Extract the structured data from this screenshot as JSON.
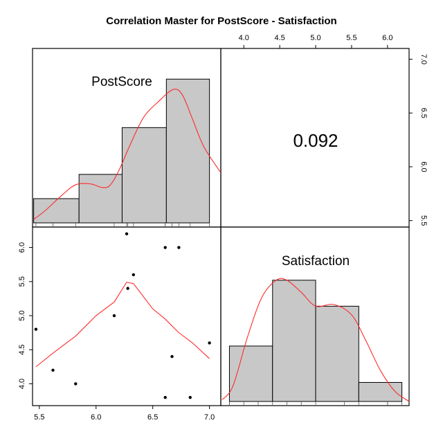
{
  "chart_data": {
    "type": "pairs",
    "title": "Correlation Master for PostScore - Satisfaction",
    "variables": [
      "PostScore",
      "Satisfaction"
    ],
    "correlation": "0.092",
    "colors": {
      "bar": "#c8c8c8",
      "curve": "#ff2a2a",
      "points": "#000000"
    },
    "postscore_axis": {
      "range": [
        5.44,
        7.1
      ],
      "ticks": [
        "5.5",
        "6.0",
        "6.5",
        "7.0"
      ]
    },
    "satisfaction_axis": {
      "range": [
        3.68,
        6.3
      ],
      "ticks": [
        "4.0",
        "4.5",
        "5.0",
        "5.5",
        "6.0"
      ]
    },
    "top_right_axis": {
      "ticks": [
        "4.0",
        "4.5",
        "5.0",
        "5.5",
        "6.0"
      ]
    },
    "right_axis": {
      "ticks": [
        "5.5",
        "6.0",
        "6.5",
        "7.0"
      ]
    },
    "left_axis": {
      "ticks": [
        "4.0",
        "4.5",
        "5.0",
        "5.5",
        "6.0"
      ]
    },
    "bottom_axis": {
      "ticks": [
        "5.5",
        "6.0",
        "6.5",
        "7.0"
      ]
    },
    "postscore_hist": {
      "bins": [
        [
          5.45,
          5.85
        ],
        [
          5.85,
          6.23
        ],
        [
          6.23,
          6.62
        ],
        [
          6.62,
          7.0
        ]
      ],
      "heights": [
        0.14,
        0.28,
        0.55,
        0.83
      ]
    },
    "satisfaction_hist": {
      "bins": [
        [
          3.8,
          4.4
        ],
        [
          4.4,
          5.0
        ],
        [
          5.0,
          5.6
        ],
        [
          5.6,
          6.2
        ]
      ],
      "heights": [
        0.32,
        0.7,
        0.55,
        0.11
      ]
    },
    "postscore_density": [
      [
        5.45,
        0.02
      ],
      [
        5.55,
        0.07
      ],
      [
        5.7,
        0.16
      ],
      [
        5.82,
        0.22
      ],
      [
        5.95,
        0.225
      ],
      [
        6.05,
        0.205
      ],
      [
        6.12,
        0.215
      ],
      [
        6.2,
        0.3
      ],
      [
        6.3,
        0.45
      ],
      [
        6.42,
        0.61
      ],
      [
        6.55,
        0.7
      ],
      [
        6.68,
        0.77
      ],
      [
        6.76,
        0.74
      ],
      [
        6.85,
        0.6
      ],
      [
        6.95,
        0.44
      ],
      [
        7.1,
        0.29
      ]
    ],
    "satisfaction_density": [
      [
        3.7,
        0.01
      ],
      [
        3.85,
        0.09
      ],
      [
        4.05,
        0.37
      ],
      [
        4.25,
        0.6
      ],
      [
        4.45,
        0.7
      ],
      [
        4.6,
        0.7
      ],
      [
        4.8,
        0.63
      ],
      [
        5.0,
        0.55
      ],
      [
        5.25,
        0.56
      ],
      [
        5.5,
        0.5
      ],
      [
        5.7,
        0.35
      ],
      [
        5.9,
        0.18
      ],
      [
        6.1,
        0.06
      ],
      [
        6.3,
        0.0
      ]
    ],
    "postscore_rug": [
      5.47,
      5.62,
      5.82,
      6.16,
      6.27,
      6.28,
      6.33,
      6.61,
      6.61,
      6.67,
      6.73,
      6.83,
      7.0
    ],
    "satisfaction_rug": [
      3.8,
      3.8,
      4.0,
      4.2,
      4.4,
      4.6,
      4.8,
      5.0,
      5.4,
      5.6,
      6.0,
      6.0,
      6.2
    ],
    "points": [
      [
        5.47,
        4.8
      ],
      [
        5.62,
        4.2
      ],
      [
        5.82,
        4.0
      ],
      [
        6.16,
        5.0
      ],
      [
        6.27,
        6.2
      ],
      [
        6.28,
        5.4
      ],
      [
        6.33,
        5.6
      ],
      [
        6.61,
        6.0
      ],
      [
        6.61,
        3.8
      ],
      [
        6.67,
        4.4
      ],
      [
        6.73,
        6.0
      ],
      [
        6.83,
        3.8
      ],
      [
        7.0,
        4.6
      ]
    ],
    "loess": [
      [
        5.47,
        4.25
      ],
      [
        5.62,
        4.45
      ],
      [
        5.82,
        4.7
      ],
      [
        6.0,
        5.0
      ],
      [
        6.16,
        5.2
      ],
      [
        6.27,
        5.49
      ],
      [
        6.33,
        5.47
      ],
      [
        6.5,
        5.1
      ],
      [
        6.61,
        4.95
      ],
      [
        6.73,
        4.75
      ],
      [
        6.85,
        4.6
      ],
      [
        7.0,
        4.37
      ]
    ]
  }
}
